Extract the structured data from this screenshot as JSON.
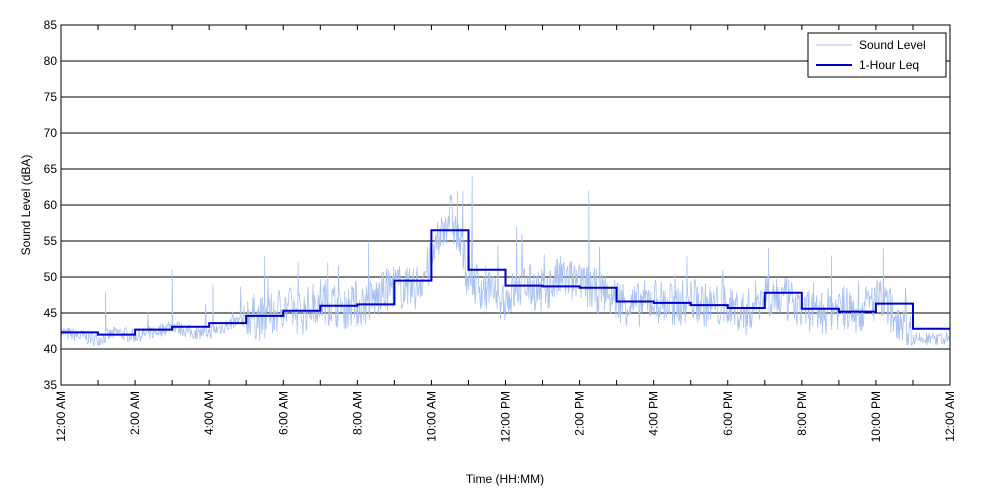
{
  "chart_data": {
    "type": "line",
    "xlabel": "Time (HH:MM)",
    "ylabel": "Sound Level (dBA)",
    "ylim": [
      35,
      85
    ],
    "yticks": [
      35,
      40,
      45,
      50,
      55,
      60,
      65,
      70,
      75,
      80,
      85
    ],
    "xlim_hours": [
      0,
      24
    ],
    "xtick_hours": [
      0,
      2,
      4,
      6,
      8,
      10,
      12,
      14,
      16,
      18,
      20,
      22,
      24
    ],
    "xtick_labels": [
      "12:00 AM",
      "2:00 AM",
      "4:00 AM",
      "6:00 AM",
      "8:00 AM",
      "10:00 AM",
      "12:00 PM",
      "2:00 PM",
      "4:00 PM",
      "6:00 PM",
      "8:00 PM",
      "10:00 PM",
      "12:00 AM"
    ],
    "grid": "horizontal",
    "legend_position": "top-right",
    "colors": {
      "sound_level": "#a9c2f2",
      "leq": "#0000cc"
    },
    "series": [
      {
        "name": "Sound Level",
        "x_hours": [
          0,
          0.5,
          1,
          1.5,
          2,
          2.5,
          3,
          3.5,
          4,
          4.5,
          5,
          5.5,
          6,
          6.5,
          7,
          7.5,
          8,
          8.5,
          9,
          9.5,
          10,
          10.25,
          10.5,
          10.75,
          11,
          11.5,
          12,
          12.5,
          13,
          13.5,
          14,
          14.5,
          15,
          15.5,
          16,
          16.5,
          17,
          17.5,
          18,
          18.5,
          19,
          19.5,
          20,
          20.5,
          21,
          21.5,
          22,
          22.5,
          23,
          23.5,
          24
        ],
        "values": [
          42,
          41.5,
          41,
          42,
          41.5,
          42,
          43,
          42,
          42,
          43,
          44,
          43,
          45,
          44,
          46,
          45,
          45,
          46,
          48,
          47,
          51,
          55,
          58,
          54,
          49,
          47,
          46,
          48,
          47,
          49,
          48,
          47,
          46,
          45,
          46,
          45,
          46,
          45,
          45,
          44,
          47,
          46,
          45,
          44,
          45,
          44,
          46,
          44,
          41,
          41,
          41
        ],
        "peaks_hours": [
          1.2,
          3.0,
          4.1,
          5.5,
          6.4,
          7.2,
          8.3,
          10.7,
          10.85,
          11.1,
          12.3,
          14.25,
          16.9,
          19.1,
          20.8,
          22.2
        ],
        "peaks_values": [
          48,
          51,
          49,
          53,
          52,
          52,
          55,
          62,
          62,
          64,
          57,
          62,
          53,
          54,
          53,
          54
        ]
      },
      {
        "name": "1-Hour Leq",
        "x_hours": [
          0,
          1,
          2,
          3,
          4,
          5,
          6,
          7,
          8,
          9,
          10,
          11,
          12,
          13,
          14,
          15,
          16,
          17,
          18,
          19,
          20,
          21,
          22,
          23
        ],
        "values": [
          42.3,
          42.0,
          42.7,
          43.1,
          43.6,
          44.6,
          45.3,
          46.0,
          46.2,
          49.5,
          56.5,
          51.0,
          48.8,
          48.7,
          48.5,
          46.6,
          46.4,
          46.1,
          45.7,
          47.8,
          45.6,
          45.2,
          46.3,
          42.8
        ]
      }
    ]
  }
}
